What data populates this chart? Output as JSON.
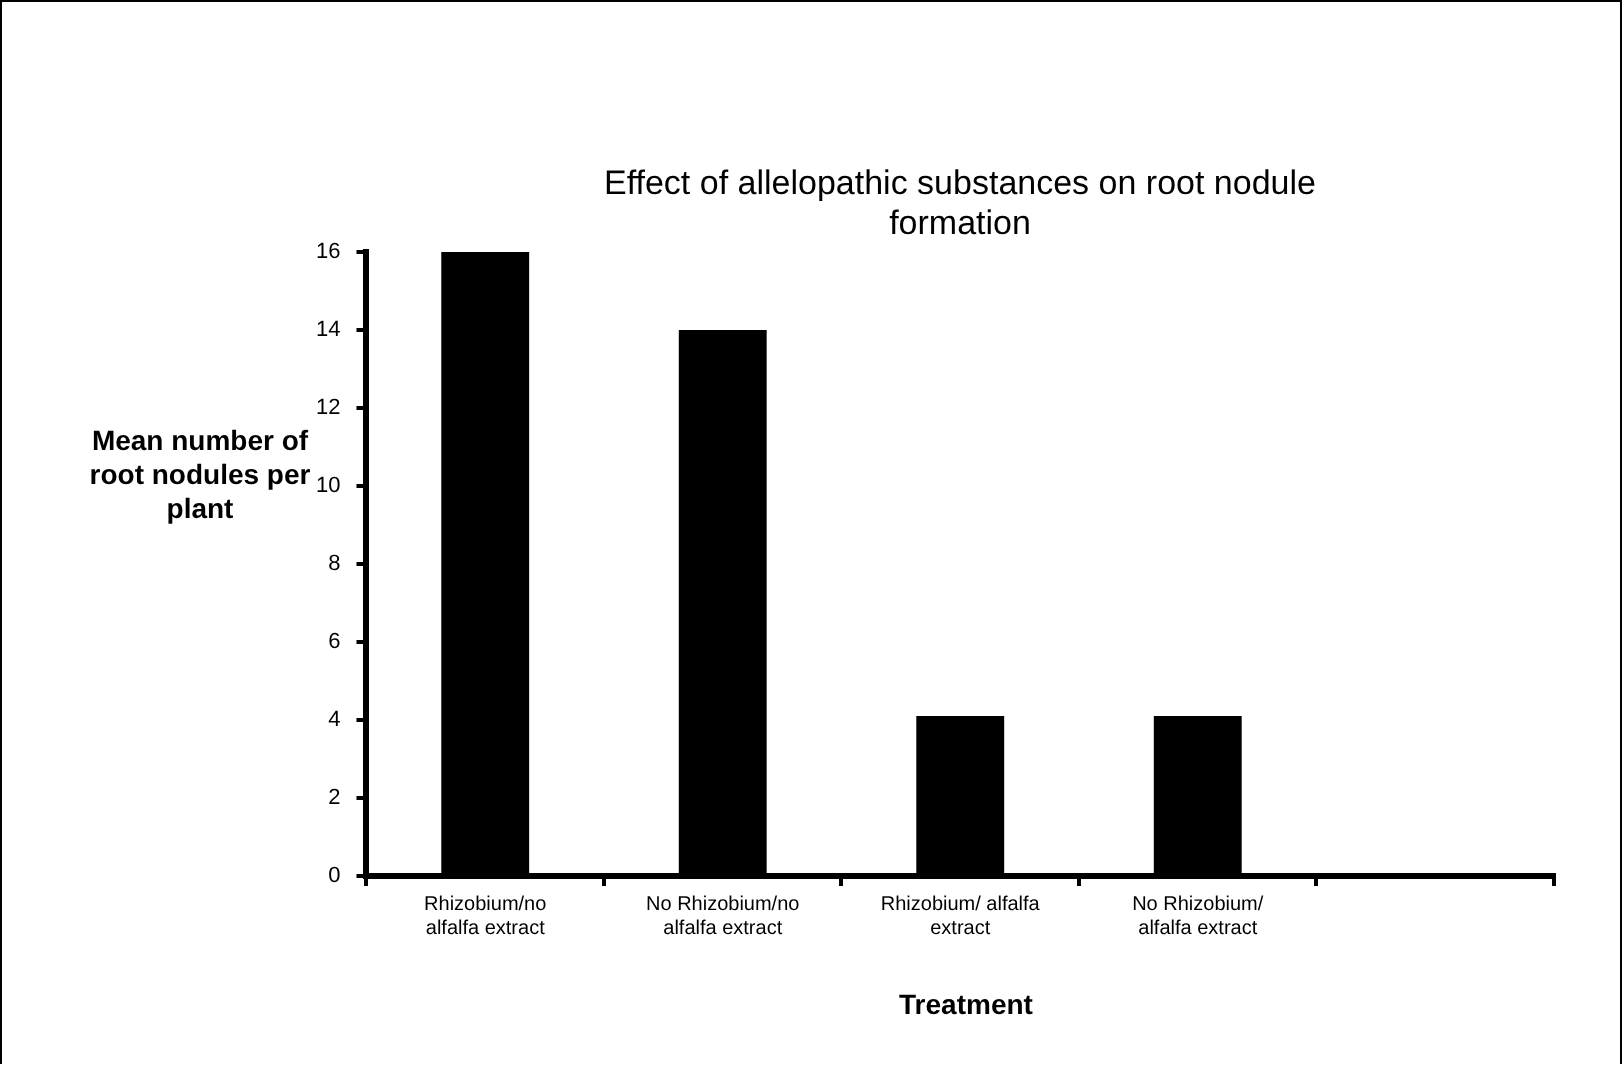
{
  "chart_data": {
    "type": "bar",
    "title": "Effect of allelopathic substances on root nodule formation",
    "xlabel": "Treatment",
    "ylabel": "Mean number of root nodules per plant",
    "categories": [
      "Rhizobium/no alfalfa extract",
      "No Rhizobium/no alfalfa extract",
      "Rhizobium/ alfalfa extract",
      "No Rhizobium/ alfalfa extract",
      null
    ],
    "values": [
      16,
      14,
      4.1,
      4.1,
      null
    ],
    "color": "#000000",
    "ylim": [
      0,
      16
    ],
    "yticks": [
      0,
      2,
      4,
      6,
      8,
      10,
      12,
      14,
      16
    ],
    "grid": false,
    "legend": false
  }
}
